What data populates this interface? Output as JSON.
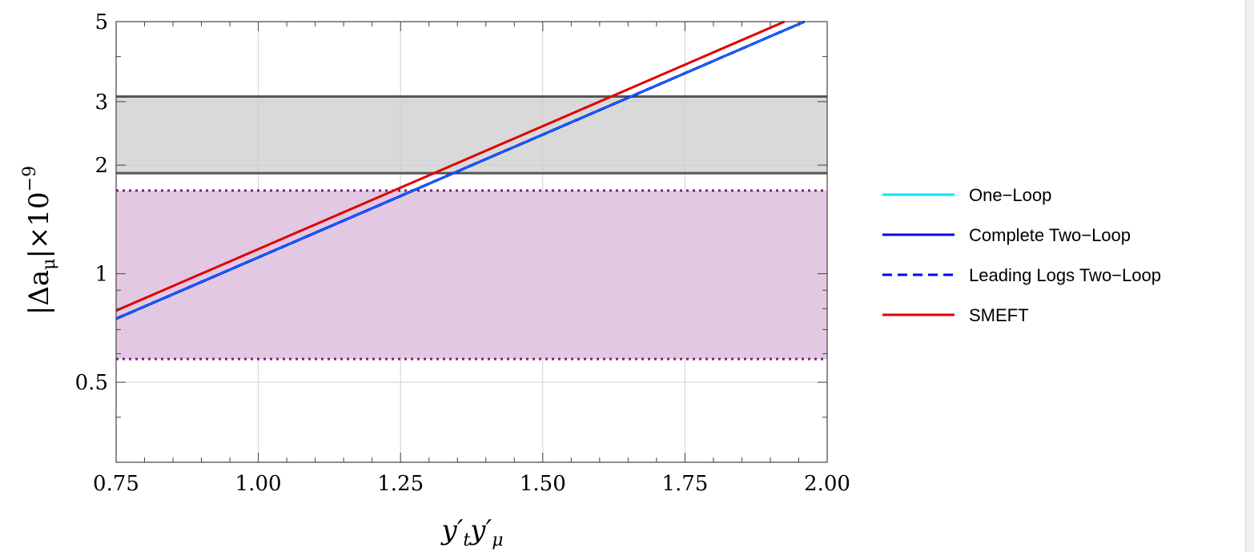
{
  "chart_data": {
    "type": "line",
    "title": "",
    "xlabel": "y′_t y′_μ",
    "ylabel": "|Δa_μ|×10^−9",
    "x_scale": "linear",
    "y_scale": "log",
    "xlim": [
      0.75,
      2.0
    ],
    "ylim": [
      0.3,
      5.0
    ],
    "x_ticks": [
      {
        "value": 0.75,
        "label": "0.75"
      },
      {
        "value": 1.0,
        "label": "1.00"
      },
      {
        "value": 1.25,
        "label": "1.25"
      },
      {
        "value": 1.5,
        "label": "1.50"
      },
      {
        "value": 1.75,
        "label": "1.75"
      },
      {
        "value": 2.0,
        "label": "2.00"
      }
    ],
    "y_ticks": [
      {
        "value": 0.5,
        "label": "0.5"
      },
      {
        "value": 1,
        "label": "1"
      },
      {
        "value": 2,
        "label": "2"
      },
      {
        "value": 3,
        "label": "3"
      },
      {
        "value": 5,
        "label": "5"
      }
    ],
    "grid": true,
    "bands": [
      {
        "name": "gray-band",
        "y_low": 1.9,
        "y_high": 3.1,
        "fill": "#d9d9d9",
        "edge": "#555555",
        "style": "solid"
      },
      {
        "name": "purple-band",
        "y_low": 0.58,
        "y_high": 1.7,
        "fill": "#e2c8e2",
        "edge": "#7b1f7b",
        "style": "dotted"
      }
    ],
    "series": [
      {
        "name": "One−Loop",
        "color": "#00e5ff",
        "style": "solid",
        "x": [
          0.75,
          1.96
        ],
        "y": [
          0.75,
          5.0
        ]
      },
      {
        "name": "Complete Two−Loop",
        "color": "#0000ee",
        "style": "solid",
        "x": [
          0.75,
          1.96
        ],
        "y": [
          0.75,
          5.0
        ]
      },
      {
        "name": "Leading Logs Two−Loop",
        "color": "#0000ee",
        "style": "dashed",
        "x": [
          0.75,
          1.96
        ],
        "y": [
          0.75,
          5.0
        ]
      },
      {
        "name": "SMEFT",
        "color": "#e00000",
        "style": "solid",
        "x": [
          0.75,
          1.925
        ],
        "y": [
          0.79,
          5.0
        ]
      }
    ],
    "legend_position": "right"
  }
}
